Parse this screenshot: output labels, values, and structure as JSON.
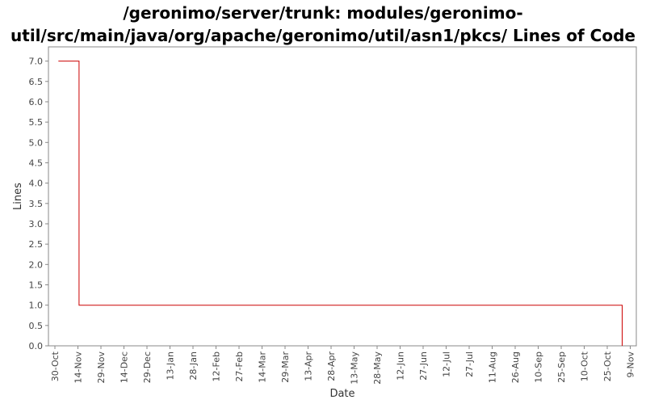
{
  "chart_data": {
    "type": "line",
    "step": true,
    "title_lines": [
      "/geronimo/server/trunk: modules/geronimo-",
      "util/src/main/java/org/apache/geronimo/util/asn1/pkcs/ Lines of Code"
    ],
    "xlabel": "Date",
    "ylabel": "Lines",
    "ylim": [
      0,
      7.35
    ],
    "y_ticks": [
      0.0,
      0.5,
      1.0,
      1.5,
      2.0,
      2.5,
      3.0,
      3.5,
      4.0,
      4.5,
      5.0,
      5.5,
      6.0,
      6.5,
      7.0
    ],
    "y_tick_labels": [
      "0.0",
      "0.5",
      "1.0",
      "1.5",
      "2.0",
      "2.5",
      "3.0",
      "3.5",
      "4.0",
      "4.5",
      "5.0",
      "5.5",
      "6.0",
      "6.5",
      "7.0"
    ],
    "x_ticks": [
      "30-Oct",
      "14-Nov",
      "29-Nov",
      "14-Dec",
      "29-Dec",
      "13-Jan",
      "28-Jan",
      "12-Feb",
      "27-Feb",
      "14-Mar",
      "29-Mar",
      "13-Apr",
      "28-Apr",
      "13-May",
      "28-May",
      "12-Jun",
      "27-Jun",
      "12-Jul",
      "27-Jul",
      "11-Aug",
      "26-Aug",
      "10-Sep",
      "25-Sep",
      "10-Oct",
      "25-Oct",
      "9-Nov"
    ],
    "grid": false,
    "series": [
      {
        "color": "#cc0000",
        "points": [
          {
            "x_tick_index": 0.15,
            "y": 7.0
          },
          {
            "x_tick_index": 1.05,
            "y": 7.0
          },
          {
            "x_tick_index": 1.05,
            "y": 1.0
          },
          {
            "x_tick_index": 24.65,
            "y": 1.0
          },
          {
            "x_tick_index": 24.65,
            "y": 0.0
          }
        ]
      }
    ]
  }
}
